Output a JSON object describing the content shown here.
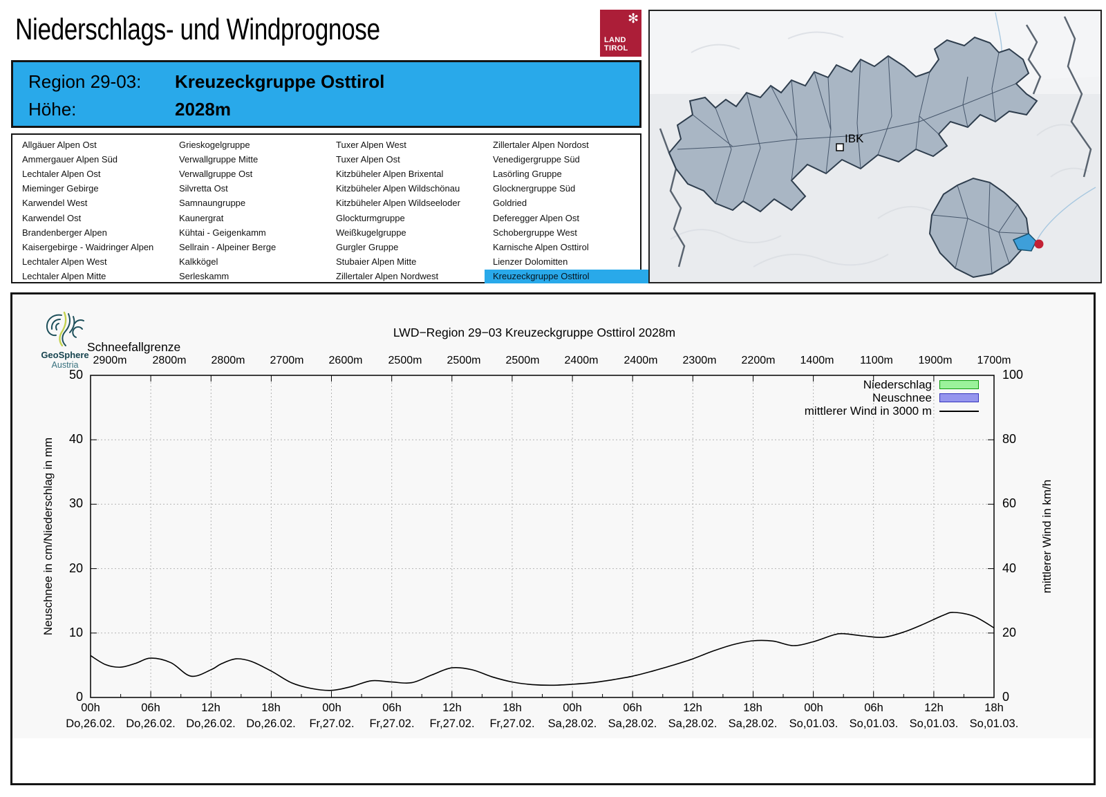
{
  "header": {
    "title": "Niederschlags- und Windprognose",
    "logo_line1": "LAND",
    "logo_line2": "TIROL",
    "region_label": "Region 29-03:",
    "region_name": "Kreuzeckgruppe Osttirol",
    "altitude_label": "Höhe:",
    "altitude": "2028m"
  },
  "region_list": {
    "selected": "Kreuzeckgruppe Osttirol",
    "columns": [
      [
        "Allgäuer Alpen Ost",
        "Ammergauer Alpen Süd",
        "Lechtaler Alpen Ost",
        "Mieminger Gebirge",
        "Karwendel West",
        "Karwendel Ost",
        "Brandenberger Alpen",
        "Kaisergebirge - Waidringer Alpen",
        "Lechtaler Alpen West",
        "Lechtaler Alpen Mitte"
      ],
      [
        "Grieskogelgruppe",
        "Verwallgruppe Mitte",
        "Verwallgruppe Ost",
        "Silvretta Ost",
        "Samnaungruppe",
        "Kaunergrat",
        "Kühtai - Geigenkamm",
        "Sellrain - Alpeiner Berge",
        "Kalkkögel",
        "Serleskamm"
      ],
      [
        "Tuxer Alpen West",
        "Tuxer Alpen Ost",
        "Kitzbüheler Alpen Brixental",
        "Kitzbüheler Alpen Wildschönau",
        "Kitzbüheler Alpen Wildseeloder",
        "Glockturmgruppe",
        "Weißkugelgruppe",
        "Gurgler Gruppe",
        "Stubaier Alpen Mitte",
        "Zillertaler Alpen Nordwest"
      ],
      [
        "Zillertaler Alpen Nordost",
        "Venedigergruppe Süd",
        "Lasörling Gruppe",
        "Glocknergruppe Süd",
        "Goldried",
        "Deferegger Alpen Ost",
        "Schobergruppe West",
        "Karnische Alpen Osttirol",
        "Lienzer Dolomitten",
        "Kreuzeckgruppe Osttirol"
      ]
    ],
    "selected_color": "#29A9EA"
  },
  "map": {
    "city_label": "IBK",
    "region_fill": "#a9b6c4",
    "highlight_color": "#3E9FD9",
    "marker_color": "#C32135"
  },
  "geosphere": {
    "name": "GeoSphere",
    "country": "Austria"
  },
  "chart_data": {
    "type": "line",
    "title": "LWD−Region 29−03 Kreuzeckgruppe Osttirol 2028m",
    "snowline": {
      "label": "Schneefallgrenze",
      "values": [
        "2900m",
        "2800m",
        "2800m",
        "2700m",
        "2600m",
        "2500m",
        "2500m",
        "2500m",
        "2400m",
        "2400m",
        "2300m",
        "2200m",
        "1400m",
        "1100m",
        "1900m",
        "1700m"
      ]
    },
    "y_left": {
      "label": "Neuschnee in cm/Niederschlag in mm",
      "range": [
        0,
        50
      ],
      "ticks": [
        0,
        10,
        20,
        30,
        40,
        50
      ]
    },
    "y_right": {
      "label": "mittlerer Wind in km/h",
      "range": [
        0,
        100
      ],
      "ticks": [
        0,
        20,
        40,
        60,
        80,
        100
      ]
    },
    "x_axis": {
      "hours_span": 90,
      "ticks": [
        {
          "time": "00h",
          "date": "Do,26.02."
        },
        {
          "time": "06h",
          "date": "Do,26.02."
        },
        {
          "time": "12h",
          "date": "Do,26.02."
        },
        {
          "time": "18h",
          "date": "Do,26.02."
        },
        {
          "time": "00h",
          "date": "Fr,27.02."
        },
        {
          "time": "06h",
          "date": "Fr,27.02."
        },
        {
          "time": "12h",
          "date": "Fr,27.02."
        },
        {
          "time": "18h",
          "date": "Fr,27.02."
        },
        {
          "time": "00h",
          "date": "Sa,28.02."
        },
        {
          "time": "06h",
          "date": "Sa,28.02."
        },
        {
          "time": "12h",
          "date": "Sa,28.02."
        },
        {
          "time": "18h",
          "date": "Sa,28.02."
        },
        {
          "time": "00h",
          "date": "So,01.03."
        },
        {
          "time": "06h",
          "date": "So,01.03."
        },
        {
          "time": "12h",
          "date": "So,01.03."
        },
        {
          "time": "18h",
          "date": "So,01.03."
        }
      ]
    },
    "legend": [
      {
        "label": "Niederschlag",
        "type": "box",
        "fill": "#9BF29B",
        "border": "#0a9a0a"
      },
      {
        "label": "Neuschnee",
        "type": "box",
        "fill": "#9595EE",
        "border": "#3333BB"
      },
      {
        "label": "mittlerer Wind in 3000 m",
        "type": "line",
        "color": "#000000"
      }
    ],
    "grid": true,
    "series": [
      {
        "name": "Niederschlag",
        "unit": "mm",
        "axis": "left",
        "type": "bar",
        "values": []
      },
      {
        "name": "Neuschnee",
        "unit": "cm",
        "axis": "left",
        "type": "bar",
        "values": []
      },
      {
        "name": "mittlerer Wind in 3000 m",
        "unit": "km/h",
        "axis": "right",
        "type": "line",
        "points": [
          [
            0,
            13.0
          ],
          [
            1.5,
            10.2
          ],
          [
            3,
            9.4
          ],
          [
            4.5,
            10.6
          ],
          [
            6,
            12.2
          ],
          [
            8,
            10.8
          ],
          [
            10,
            6.6
          ],
          [
            12,
            8.6
          ],
          [
            13,
            10.4
          ],
          [
            14.5,
            12.0
          ],
          [
            16,
            11.2
          ],
          [
            18,
            8.2
          ],
          [
            20,
            4.6
          ],
          [
            22,
            2.8
          ],
          [
            24,
            2.2
          ],
          [
            26,
            3.4
          ],
          [
            28,
            5.2
          ],
          [
            30,
            4.8
          ],
          [
            32,
            4.6
          ],
          [
            34,
            7.0
          ],
          [
            36,
            9.2
          ],
          [
            38,
            8.6
          ],
          [
            40,
            6.4
          ],
          [
            42,
            4.8
          ],
          [
            44,
            4.0
          ],
          [
            46,
            3.8
          ],
          [
            48,
            4.1
          ],
          [
            50,
            4.6
          ],
          [
            52,
            5.5
          ],
          [
            54,
            6.6
          ],
          [
            56,
            8.2
          ],
          [
            58,
            10.0
          ],
          [
            60,
            12.0
          ],
          [
            62,
            14.4
          ],
          [
            64,
            16.4
          ],
          [
            66,
            17.6
          ],
          [
            68,
            17.5
          ],
          [
            70,
            16.1
          ],
          [
            72,
            17.3
          ],
          [
            74,
            19.4
          ],
          [
            75,
            19.8
          ],
          [
            77,
            19.1
          ],
          [
            79,
            18.7
          ],
          [
            81,
            20.3
          ],
          [
            83,
            22.8
          ],
          [
            85,
            25.6
          ],
          [
            86,
            26.4
          ],
          [
            88,
            25.2
          ],
          [
            90,
            21.6
          ]
        ]
      }
    ]
  }
}
